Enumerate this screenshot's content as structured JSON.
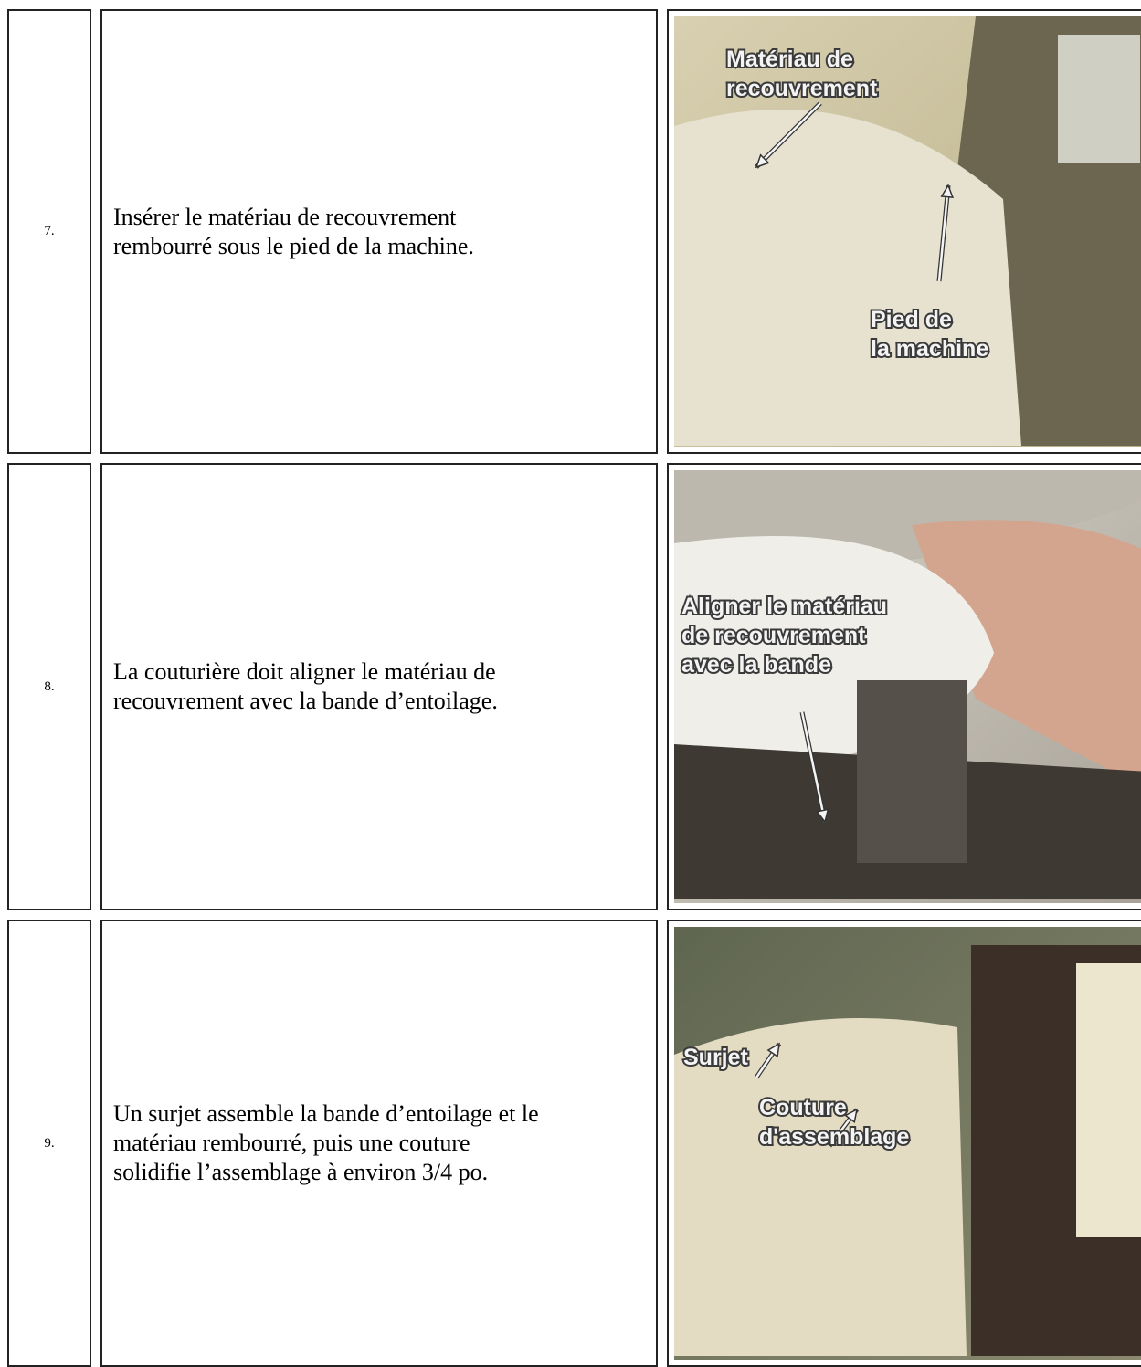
{
  "rows": [
    {
      "number": "7.",
      "text": [
        "Insérer le matériau de recouvrement",
        "rembourré sous le pied de la machine."
      ],
      "image": {
        "labels": [
          [
            "Matériau de",
            "recouvrement"
          ],
          [
            "Pied de",
            "la machine"
          ]
        ]
      }
    },
    {
      "number": "8.",
      "text": [
        "La couturière doit aligner le matériau de",
        "recouvrement avec la bande d’entoilage."
      ],
      "image": {
        "labels": [
          [
            "Aligner le matériau",
            "de recouvrement",
            "avec la bande"
          ]
        ]
      }
    },
    {
      "number": "9.",
      "text": [
        "Un surjet assemble la bande d’entoilage et le",
        "matériau rembourré, puis une couture",
        "solidifie l’assemblage à environ 3/4 po."
      ],
      "image": {
        "labels": [
          [
            "Surjet"
          ],
          [
            "Couture",
            "d'assemblage"
          ]
        ]
      }
    }
  ]
}
